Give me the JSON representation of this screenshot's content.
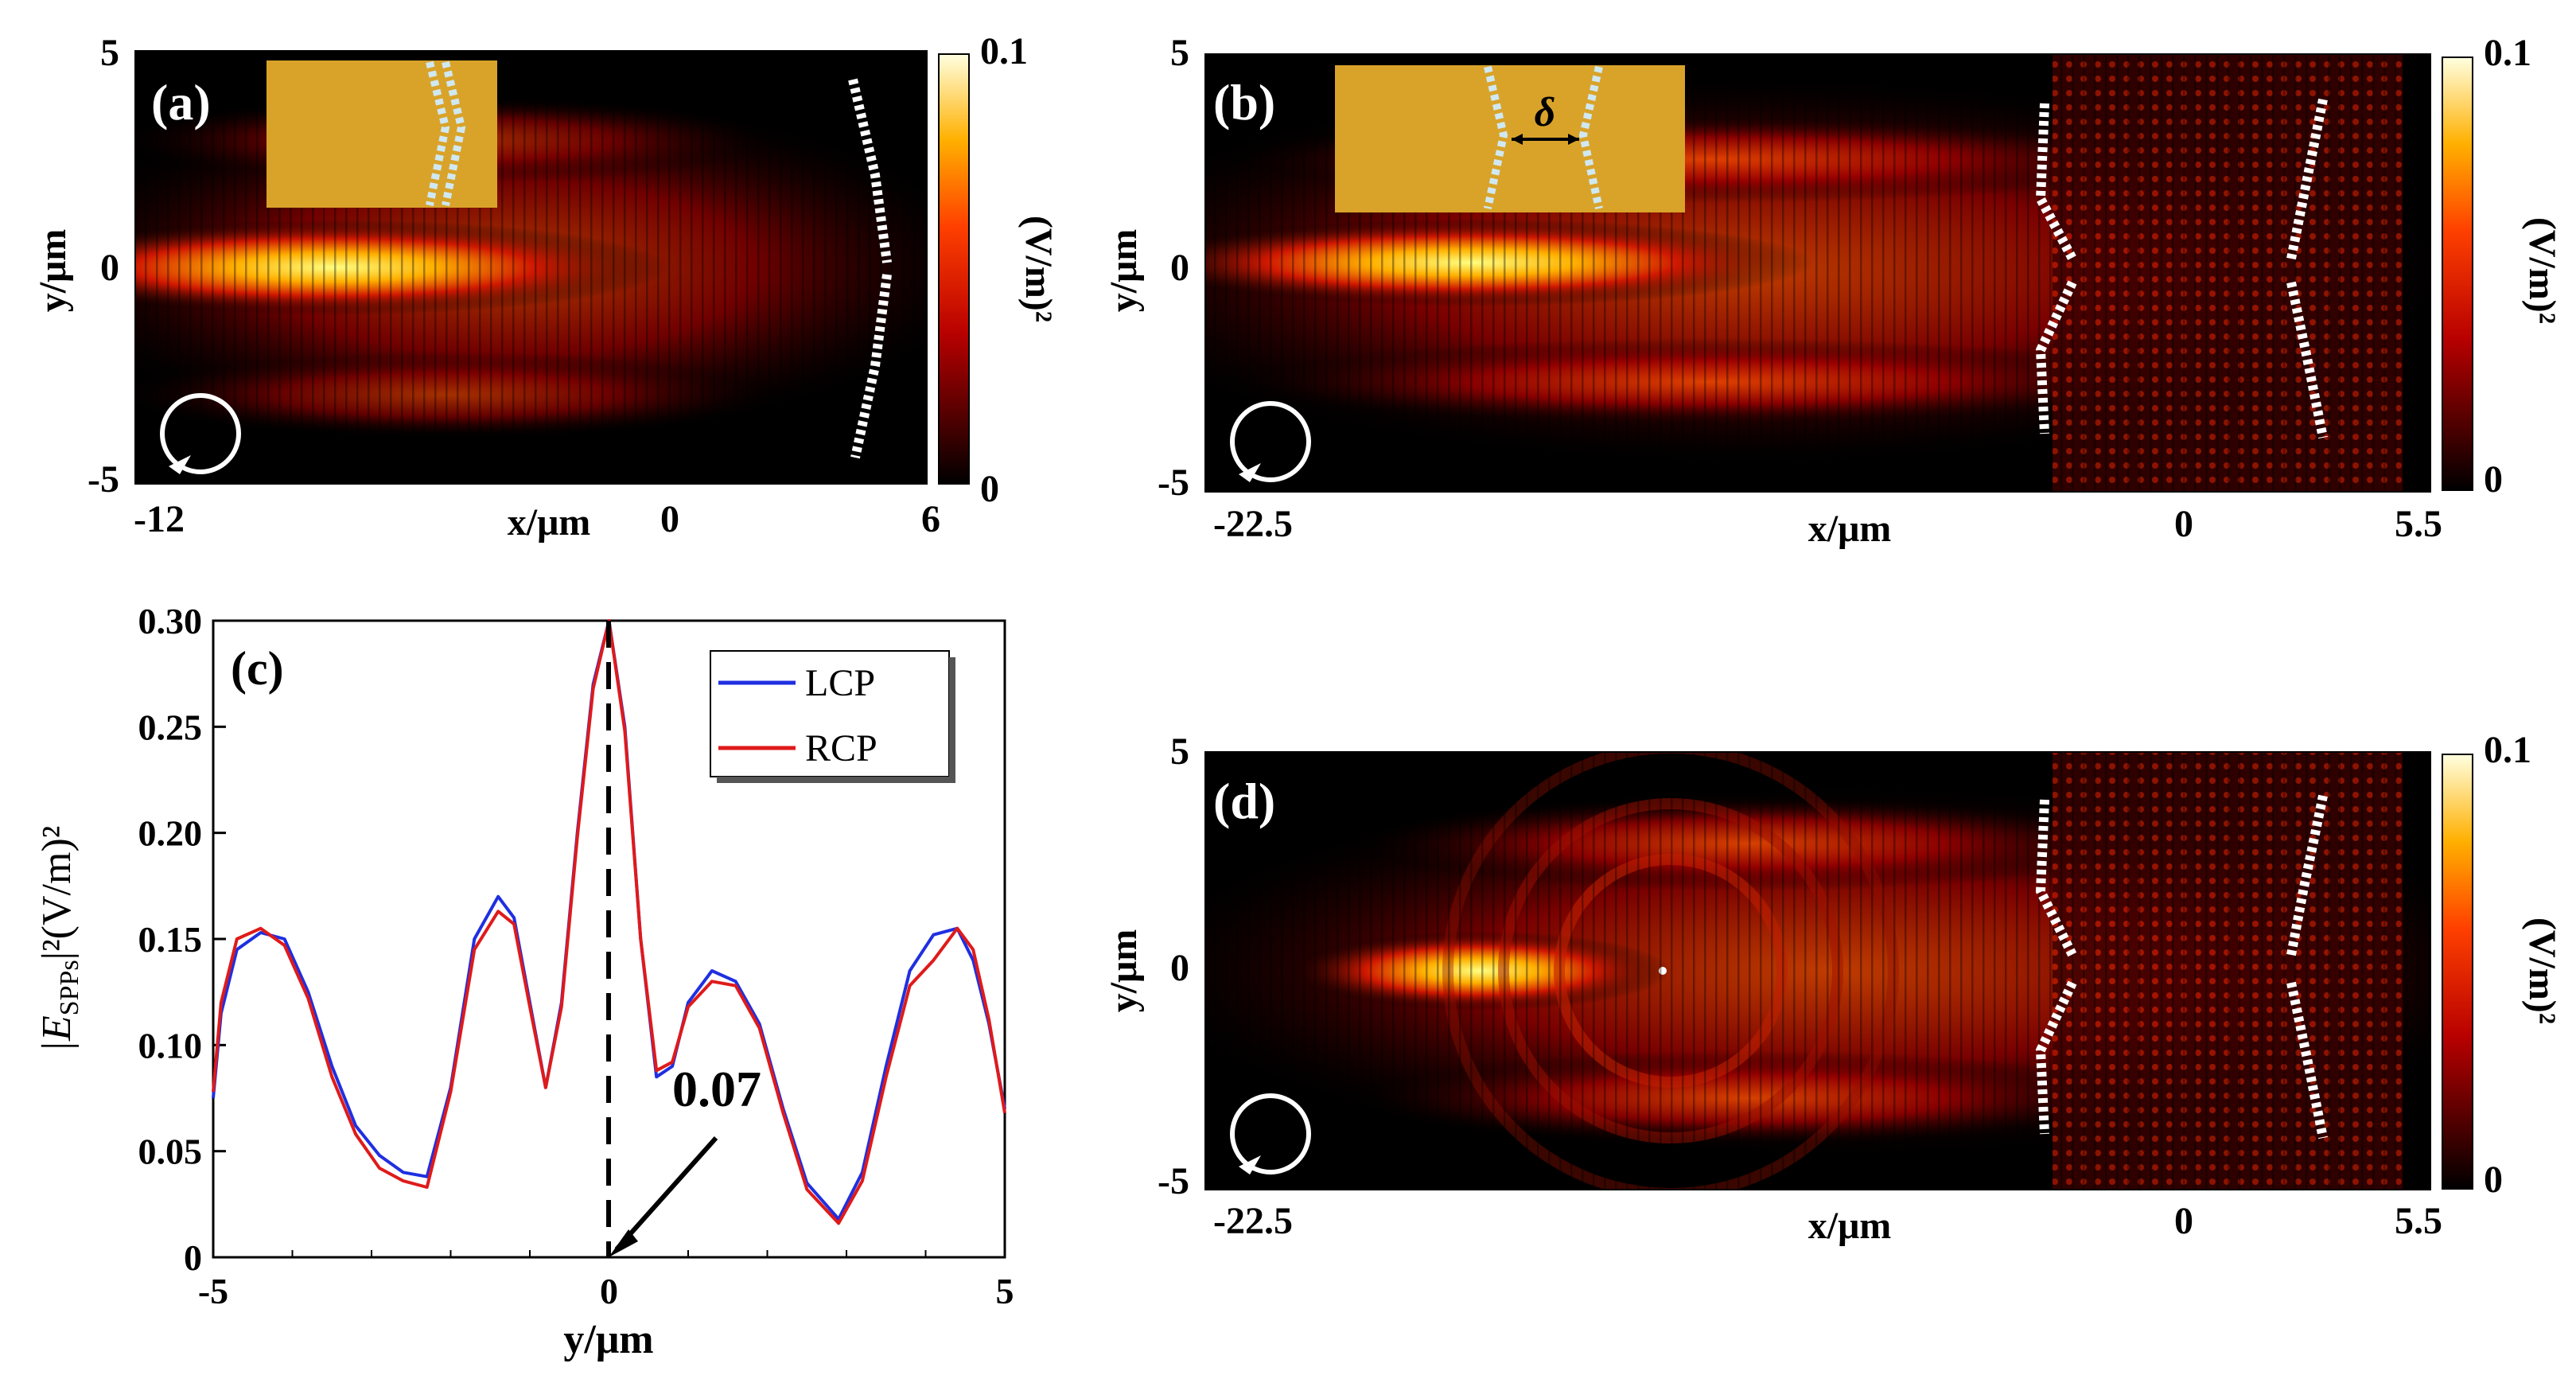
{
  "figure": {
    "panel_a": {
      "label": "(a)",
      "y_ticks": [
        "5",
        "0",
        "-5"
      ],
      "y_label": "y/μm",
      "x_ticks": [
        "-12",
        "0",
        "6"
      ],
      "x_label": "x/μm",
      "colorbar_max": "0.1",
      "colorbar_min": "0",
      "colorbar_unit": "(V/m)²"
    },
    "panel_b": {
      "label": "(b)",
      "inset_symbol": "δ",
      "y_ticks": [
        "5",
        "0",
        "-5"
      ],
      "y_label": "y/μm",
      "x_ticks": [
        "-22.5",
        "0",
        "5.5"
      ],
      "x_label": "x/μm",
      "colorbar_max": "0.1",
      "colorbar_min": "0",
      "colorbar_unit": "(V/m)²"
    },
    "panel_d": {
      "label": "(d)",
      "y_ticks": [
        "5",
        "0",
        "-5"
      ],
      "y_label": "y/μm",
      "x_ticks": [
        "-22.5",
        "0",
        "5.5"
      ],
      "x_label": "x/μm",
      "colorbar_max": "0.1",
      "colorbar_min": "0",
      "colorbar_unit": "(V/m)²"
    }
  },
  "chart_data": {
    "type": "line",
    "label": "(c)",
    "xlabel": "y/μm",
    "ylabel_main": "|E",
    "ylabel_sub": "SPPs",
    "ylabel_rest": "|²(V/m)²",
    "xlim": [
      -5,
      5
    ],
    "ylim": [
      0,
      0.3
    ],
    "x_ticks": [
      "-5",
      "0",
      "5"
    ],
    "y_ticks": [
      "0",
      "0.05",
      "0.10",
      "0.15",
      "0.20",
      "0.25",
      "0.30"
    ],
    "annotation": "0.07",
    "legend": [
      "LCP",
      "RCP"
    ],
    "colors": {
      "LCP": "#1f2fe0",
      "RCP": "#e01a1a"
    },
    "series": [
      {
        "name": "LCP",
        "x": [
          -5,
          -4.9,
          -4.7,
          -4.4,
          -4.1,
          -3.8,
          -3.5,
          -3.2,
          -2.9,
          -2.6,
          -2.3,
          -2.0,
          -1.7,
          -1.4,
          -1.2,
          -1.0,
          -0.8,
          -0.6,
          -0.4,
          -0.2,
          0,
          0.2,
          0.4,
          0.6,
          0.8,
          1.0,
          1.3,
          1.6,
          1.9,
          2.2,
          2.5,
          2.9,
          3.2,
          3.5,
          3.8,
          4.1,
          4.4,
          4.6,
          4.8,
          5.0
        ],
        "y": [
          0.075,
          0.115,
          0.145,
          0.153,
          0.15,
          0.125,
          0.09,
          0.062,
          0.048,
          0.04,
          0.038,
          0.08,
          0.15,
          0.17,
          0.16,
          0.12,
          0.08,
          0.12,
          0.2,
          0.27,
          0.3,
          0.25,
          0.15,
          0.085,
          0.09,
          0.12,
          0.135,
          0.13,
          0.11,
          0.07,
          0.035,
          0.018,
          0.04,
          0.09,
          0.135,
          0.152,
          0.155,
          0.14,
          0.11,
          0.07
        ]
      },
      {
        "name": "RCP",
        "x": [
          -5,
          -4.9,
          -4.7,
          -4.4,
          -4.1,
          -3.8,
          -3.5,
          -3.2,
          -2.9,
          -2.6,
          -2.3,
          -2.0,
          -1.7,
          -1.4,
          -1.2,
          -1.0,
          -0.8,
          -0.6,
          -0.4,
          -0.2,
          0,
          0.2,
          0.4,
          0.6,
          0.8,
          1.0,
          1.3,
          1.6,
          1.9,
          2.2,
          2.5,
          2.9,
          3.2,
          3.5,
          3.8,
          4.1,
          4.4,
          4.6,
          4.8,
          5.0
        ],
        "y": [
          0.078,
          0.12,
          0.15,
          0.155,
          0.147,
          0.122,
          0.085,
          0.058,
          0.042,
          0.036,
          0.033,
          0.078,
          0.145,
          0.163,
          0.157,
          0.118,
          0.08,
          0.118,
          0.198,
          0.268,
          0.3,
          0.248,
          0.15,
          0.088,
          0.092,
          0.118,
          0.13,
          0.128,
          0.108,
          0.068,
          0.032,
          0.016,
          0.036,
          0.085,
          0.128,
          0.14,
          0.155,
          0.145,
          0.112,
          0.068
        ]
      }
    ]
  }
}
